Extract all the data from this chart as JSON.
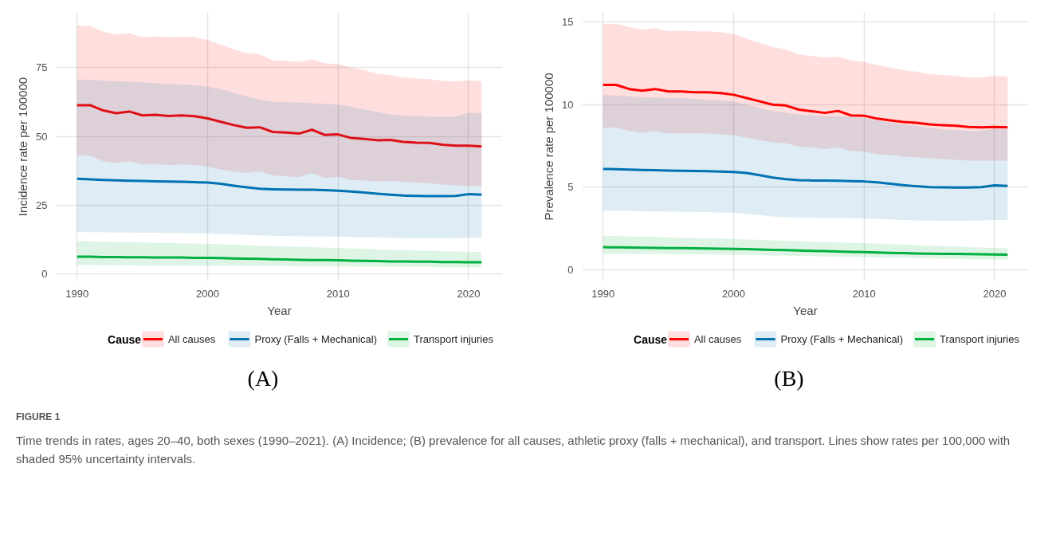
{
  "chart_data": [
    {
      "type": "line",
      "xlabel": "Year",
      "ylabel": "Incidence rate per 100000",
      "legend_title": "Cause",
      "legend": "bottom",
      "grid": true,
      "line_style": "solid",
      "x": [
        1990,
        1991,
        1992,
        1993,
        1994,
        1995,
        1996,
        1997,
        1998,
        1999,
        2000,
        2001,
        2002,
        2003,
        2004,
        2005,
        2006,
        2007,
        2008,
        2009,
        2010,
        2011,
        2012,
        2013,
        2014,
        2015,
        2016,
        2017,
        2018,
        2019,
        2020,
        2021
      ],
      "xlim": [
        1988.4,
        2022.6
      ],
      "xticks": [
        1990,
        2000,
        2010,
        2020
      ],
      "ylim": [
        -2.5,
        95
      ],
      "yticks": [
        0,
        25,
        50,
        75
      ],
      "series": [
        {
          "name": "All causes",
          "color": "#ff0000",
          "values": [
            61.3,
            61.3,
            59.4,
            58.4,
            59.0,
            57.6,
            57.8,
            57.4,
            57.6,
            57.3,
            56.5,
            55.3,
            54.1,
            53.1,
            53.3,
            51.6,
            51.4,
            51.0,
            52.4,
            50.5,
            50.7,
            49.4,
            49.1,
            48.6,
            48.7,
            48.0,
            47.7,
            47.6,
            47.0,
            46.6,
            46.6,
            46.3
          ],
          "upper": [
            90.3,
            90.0,
            88.0,
            87.0,
            87.5,
            86.0,
            86.2,
            86.0,
            86.1,
            86.0,
            85.0,
            83.3,
            81.7,
            80.2,
            79.8,
            77.5,
            77.4,
            77.0,
            78.0,
            76.5,
            76.3,
            75.0,
            74.0,
            72.8,
            72.3,
            71.3,
            71.0,
            70.8,
            70.1,
            70.0,
            70.3,
            70.0
          ],
          "lower": [
            43.0,
            43.0,
            41.0,
            40.3,
            41.0,
            39.8,
            40.0,
            39.5,
            39.8,
            39.6,
            39.0,
            38.0,
            37.2,
            36.7,
            37.3,
            35.8,
            35.5,
            35.2,
            36.7,
            34.8,
            35.3,
            34.2,
            34.0,
            33.6,
            33.8,
            33.5,
            33.2,
            33.0,
            32.5,
            32.2,
            32.0,
            32.0
          ]
        },
        {
          "name": "Proxy (Falls + Mechanical)",
          "color": "#0072b2",
          "values": [
            34.6,
            34.4,
            34.2,
            34.0,
            33.9,
            33.8,
            33.7,
            33.6,
            33.5,
            33.4,
            33.2,
            32.8,
            32.1,
            31.5,
            31.0,
            30.8,
            30.7,
            30.6,
            30.6,
            30.5,
            30.3,
            30.0,
            29.6,
            29.2,
            28.8,
            28.5,
            28.4,
            28.3,
            28.3,
            28.4,
            29.0,
            28.8
          ],
          "upper": [
            70.7,
            70.5,
            70.2,
            70.0,
            69.8,
            69.6,
            69.3,
            69.0,
            68.8,
            68.5,
            68.0,
            67.2,
            65.8,
            64.5,
            63.3,
            62.5,
            62.4,
            62.2,
            62.0,
            61.8,
            61.5,
            60.8,
            59.8,
            58.8,
            58.0,
            57.5,
            57.3,
            57.2,
            57.2,
            57.2,
            58.6,
            58.3
          ],
          "lower": [
            15.3,
            15.2,
            15.2,
            15.1,
            15.1,
            15.0,
            15.0,
            14.9,
            14.9,
            14.8,
            14.8,
            14.6,
            14.4,
            14.2,
            14.0,
            13.9,
            13.8,
            13.8,
            13.7,
            13.7,
            13.6,
            13.5,
            13.4,
            13.3,
            13.2,
            13.1,
            13.0,
            13.0,
            13.0,
            13.1,
            13.2,
            13.2
          ]
        },
        {
          "name": "Transport injuries",
          "color": "#00b140",
          "values": [
            6.3,
            6.3,
            6.2,
            6.2,
            6.1,
            6.1,
            6.0,
            6.0,
            6.0,
            5.9,
            5.9,
            5.8,
            5.7,
            5.6,
            5.5,
            5.4,
            5.3,
            5.2,
            5.1,
            5.1,
            5.0,
            4.9,
            4.8,
            4.7,
            4.6,
            4.6,
            4.5,
            4.5,
            4.4,
            4.4,
            4.3,
            4.3
          ],
          "upper": [
            12.0,
            11.9,
            11.8,
            11.7,
            11.6,
            11.5,
            11.4,
            11.3,
            11.2,
            11.1,
            11.0,
            10.9,
            10.7,
            10.5,
            10.3,
            10.2,
            10.0,
            9.9,
            9.8,
            9.6,
            9.5,
            9.3,
            9.2,
            9.0,
            8.8,
            8.7,
            8.6,
            8.5,
            8.3,
            8.2,
            8.1,
            8.0
          ],
          "lower": [
            3.3,
            3.3,
            3.2,
            3.2,
            3.2,
            3.1,
            3.1,
            3.1,
            3.0,
            3.0,
            3.0,
            3.0,
            3.0,
            2.9,
            2.9,
            2.9,
            2.9,
            2.8,
            2.8,
            2.8,
            2.8,
            2.7,
            2.7,
            2.7,
            2.6,
            2.6,
            2.6,
            2.6,
            2.5,
            2.5,
            2.5,
            2.5
          ]
        }
      ],
      "annotations": [
        "(A)",
        "FIGURE 1",
        "Time trends in rates, ages 20–40, both sexes (1990–2021). (A) Incidence; (B) prevalence for all causes, athletic proxy (falls + mechanical), and transport. Lines show rates per 100,000 with shaded 95% uncertainty intervals."
      ]
    },
    {
      "type": "line",
      "xlabel": "Year",
      "ylabel": "Prevalence rate per 100000",
      "legend_title": "Cause",
      "legend": "bottom",
      "grid": true,
      "line_style": "solid",
      "x": [
        1990,
        1991,
        1992,
        1993,
        1994,
        1995,
        1996,
        1997,
        1998,
        1999,
        2000,
        2001,
        2002,
        2003,
        2004,
        2005,
        2006,
        2007,
        2008,
        2009,
        2010,
        2011,
        2012,
        2013,
        2014,
        2015,
        2016,
        2017,
        2018,
        2019,
        2020,
        2021
      ],
      "xlim": [
        1988.4,
        2022.6
      ],
      "xticks": [
        1990,
        2000,
        2010,
        2020
      ],
      "ylim": [
        -0.7,
        15.6
      ],
      "yticks": [
        0,
        5,
        10,
        15
      ],
      "series": [
        {
          "name": "All causes",
          "color": "#ff0000",
          "values": [
            11.2,
            11.2,
            10.95,
            10.85,
            10.95,
            10.8,
            10.8,
            10.75,
            10.75,
            10.7,
            10.6,
            10.4,
            10.2,
            10.0,
            9.95,
            9.7,
            9.6,
            9.5,
            9.62,
            9.35,
            9.33,
            9.15,
            9.05,
            8.95,
            8.9,
            8.8,
            8.75,
            8.72,
            8.65,
            8.62,
            8.65,
            8.62
          ],
          "upper": [
            14.9,
            14.9,
            14.7,
            14.55,
            14.65,
            14.45,
            14.5,
            14.45,
            14.45,
            14.4,
            14.3,
            14.0,
            13.75,
            13.5,
            13.35,
            13.05,
            12.95,
            12.85,
            12.9,
            12.7,
            12.6,
            12.4,
            12.25,
            12.1,
            12.0,
            11.85,
            11.8,
            11.75,
            11.65,
            11.65,
            11.75,
            11.7
          ],
          "lower": [
            8.6,
            8.6,
            8.4,
            8.3,
            8.4,
            8.25,
            8.25,
            8.25,
            8.25,
            8.2,
            8.15,
            8.0,
            7.85,
            7.7,
            7.65,
            7.45,
            7.4,
            7.3,
            7.4,
            7.2,
            7.15,
            7.0,
            6.95,
            6.85,
            6.8,
            6.75,
            6.7,
            6.65,
            6.6,
            6.6,
            6.6,
            6.6
          ]
        },
        {
          "name": "Proxy (Falls + Mechanical)",
          "color": "#0072b2",
          "values": [
            6.1,
            6.08,
            6.06,
            6.04,
            6.02,
            6.0,
            5.99,
            5.98,
            5.96,
            5.94,
            5.92,
            5.85,
            5.72,
            5.58,
            5.48,
            5.42,
            5.4,
            5.39,
            5.38,
            5.36,
            5.34,
            5.28,
            5.2,
            5.12,
            5.05,
            5.0,
            4.98,
            4.97,
            4.97,
            4.99,
            5.1,
            5.07
          ],
          "upper": [
            10.6,
            10.55,
            10.5,
            10.45,
            10.45,
            10.4,
            10.4,
            10.35,
            10.3,
            10.25,
            10.2,
            10.0,
            9.8,
            9.6,
            9.5,
            9.4,
            9.35,
            9.3,
            9.3,
            9.25,
            9.2,
            9.05,
            8.9,
            8.8,
            8.7,
            8.6,
            8.5,
            8.45,
            8.4,
            8.4,
            8.55,
            8.5
          ],
          "lower": [
            3.55,
            3.55,
            3.54,
            3.53,
            3.52,
            3.51,
            3.5,
            3.49,
            3.48,
            3.46,
            3.45,
            3.38,
            3.3,
            3.22,
            3.17,
            3.15,
            3.14,
            3.13,
            3.12,
            3.11,
            3.1,
            3.07,
            3.04,
            3.0,
            2.97,
            2.96,
            2.95,
            2.95,
            2.95,
            2.97,
            3.0,
            3.0
          ]
        },
        {
          "name": "Transport injuries",
          "color": "#00b140",
          "values": [
            1.35,
            1.34,
            1.33,
            1.32,
            1.31,
            1.3,
            1.29,
            1.28,
            1.27,
            1.26,
            1.25,
            1.23,
            1.21,
            1.19,
            1.17,
            1.15,
            1.13,
            1.11,
            1.09,
            1.07,
            1.05,
            1.03,
            1.01,
            0.99,
            0.97,
            0.96,
            0.95,
            0.94,
            0.93,
            0.92,
            0.91,
            0.9
          ],
          "upper": [
            2.05,
            2.03,
            2.01,
            1.99,
            1.97,
            1.95,
            1.93,
            1.91,
            1.89,
            1.87,
            1.85,
            1.82,
            1.8,
            1.77,
            1.74,
            1.72,
            1.69,
            1.66,
            1.64,
            1.62,
            1.6,
            1.57,
            1.54,
            1.51,
            1.48,
            1.45,
            1.42,
            1.39,
            1.36,
            1.33,
            1.31,
            1.3
          ],
          "lower": [
            0.95,
            0.95,
            0.94,
            0.94,
            0.93,
            0.93,
            0.92,
            0.92,
            0.91,
            0.91,
            0.9,
            0.88,
            0.87,
            0.85,
            0.84,
            0.82,
            0.81,
            0.79,
            0.78,
            0.76,
            0.75,
            0.73,
            0.72,
            0.7,
            0.69,
            0.67,
            0.66,
            0.64,
            0.63,
            0.61,
            0.6,
            0.6
          ]
        }
      ],
      "annotations": [
        "(B)"
      ]
    }
  ]
}
